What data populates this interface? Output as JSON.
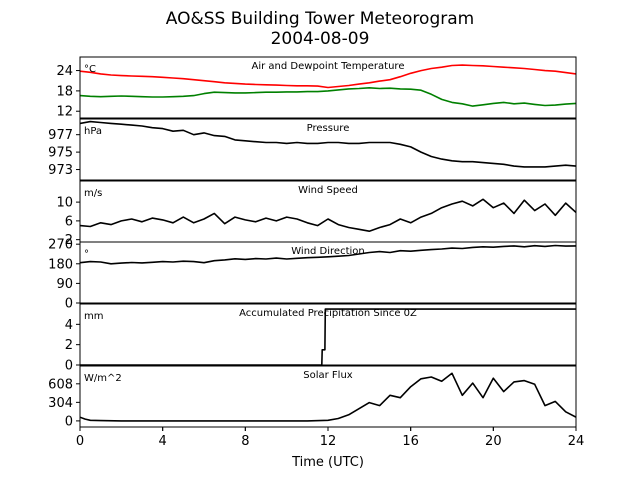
{
  "title_line1": "AO&SS Building Tower Meteorogram",
  "title_line2": "2004-08-09",
  "xlabel": "Time (UTC)",
  "chart_data": {
    "type": "line",
    "title": "AO&SS Building Tower Meteorogram 2004-08-09",
    "xlabel": "Time (UTC)",
    "xlim": [
      0,
      24
    ],
    "xticks": [
      0,
      4,
      8,
      12,
      16,
      20,
      24
    ],
    "grid": false,
    "panels": [
      {
        "name": "Air and Dewpoint Temperature",
        "unit": "°C",
        "ylim": [
          10,
          28
        ],
        "yticks": [
          12,
          18,
          24
        ],
        "series": [
          {
            "color": "#ff0000",
            "x": [
              0,
              0.5,
              1,
              1.5,
              2,
              2.5,
              3,
              3.5,
              4,
              4.5,
              5,
              5.5,
              6,
              6.5,
              7,
              7.5,
              8,
              8.5,
              9,
              9.5,
              10,
              10.5,
              11,
              11.5,
              12,
              12.5,
              13,
              13.5,
              14,
              14.5,
              15,
              15.5,
              16,
              16.5,
              17,
              17.5,
              18,
              18.5,
              19,
              19.5,
              20,
              20.5,
              21,
              21.5,
              22,
              22.5,
              23,
              23.5,
              24
            ],
            "y": [
              23.8,
              23.5,
              23.0,
              22.7,
              22.5,
              22.4,
              22.3,
              22.2,
              22.0,
              21.8,
              21.6,
              21.3,
              21.0,
              20.7,
              20.4,
              20.2,
              20.0,
              19.9,
              19.8,
              19.7,
              19.6,
              19.5,
              19.5,
              19.4,
              19.0,
              19.3,
              19.6,
              20.0,
              20.4,
              20.9,
              21.3,
              22.2,
              23.2,
              24.0,
              24.6,
              25.0,
              25.5,
              25.6,
              25.5,
              25.4,
              25.2,
              25.0,
              24.8,
              24.6,
              24.3,
              24.0,
              23.8,
              23.4,
              23.0
            ]
          },
          {
            "color": "#008000",
            "x": [
              0,
              0.5,
              1,
              1.5,
              2,
              2.5,
              3,
              3.5,
              4,
              4.5,
              5,
              5.5,
              6,
              6.5,
              7,
              7.5,
              8,
              8.5,
              9,
              9.5,
              10,
              10.5,
              11,
              11.5,
              12,
              12.5,
              13,
              13.5,
              14,
              14.5,
              15,
              15.5,
              16,
              16.5,
              17,
              17.5,
              18,
              18.5,
              19,
              19.5,
              20,
              20.5,
              21,
              21.5,
              22,
              22.5,
              23,
              23.5,
              24
            ],
            "y": [
              16.6,
              16.4,
              16.3,
              16.4,
              16.5,
              16.4,
              16.3,
              16.2,
              16.2,
              16.3,
              16.4,
              16.6,
              17.2,
              17.6,
              17.5,
              17.4,
              17.4,
              17.5,
              17.6,
              17.6,
              17.7,
              17.7,
              17.8,
              17.8,
              18.0,
              18.3,
              18.6,
              18.7,
              18.9,
              18.7,
              18.8,
              18.6,
              18.5,
              18.2,
              17.0,
              15.5,
              14.6,
              14.2,
              13.5,
              13.9,
              14.3,
              14.6,
              14.2,
              14.4,
              14.0,
              13.7,
              13.8,
              14.1,
              14.3
            ]
          }
        ]
      },
      {
        "name": "Pressure",
        "unit": "hPa",
        "ylim": [
          971.8,
          978.8
        ],
        "yticks": [
          973,
          975,
          977
        ],
        "series": [
          {
            "color": "#000000",
            "x": [
              0,
              0.5,
              1,
              1.5,
              2,
              2.5,
              3,
              3.5,
              4,
              4.5,
              5,
              5.5,
              6,
              6.5,
              7,
              7.5,
              8,
              8.5,
              9,
              9.5,
              10,
              10.5,
              11,
              11.5,
              12,
              12.5,
              13,
              13.5,
              14,
              14.5,
              15,
              15.5,
              16,
              16.5,
              17,
              17.5,
              18,
              18.5,
              19,
              19.5,
              20,
              20.5,
              21,
              21.5,
              22,
              22.5,
              23,
              23.5,
              24
            ],
            "y": [
              978.3,
              978.5,
              978.4,
              978.3,
              978.2,
              978.1,
              978.0,
              977.8,
              977.7,
              977.4,
              977.5,
              977.0,
              977.2,
              976.9,
              976.8,
              976.4,
              976.3,
              976.2,
              976.1,
              976.1,
              976.0,
              976.1,
              976.0,
              976.0,
              976.1,
              976.1,
              976.0,
              976.0,
              976.1,
              976.1,
              976.1,
              975.9,
              975.6,
              975.0,
              974.5,
              974.2,
              974.0,
              973.9,
              973.9,
              973.8,
              973.7,
              973.6,
              973.4,
              973.3,
              973.3,
              973.3,
              973.4,
              973.5,
              973.4
            ]
          }
        ]
      },
      {
        "name": "Wind Speed",
        "unit": "m/s",
        "ylim": [
          1.5,
          14.5
        ],
        "yticks": [
          2,
          6,
          10
        ],
        "series": [
          {
            "color": "#000000",
            "x": [
              0,
              0.5,
              1,
              1.5,
              2,
              2.5,
              3,
              3.5,
              4,
              4.5,
              5,
              5.5,
              6,
              6.5,
              7,
              7.5,
              8,
              8.5,
              9,
              9.5,
              10,
              10.5,
              11,
              11.5,
              12,
              12.5,
              13,
              13.5,
              14,
              14.5,
              15,
              15.5,
              16,
              16.5,
              17,
              17.5,
              18,
              18.5,
              19,
              19.5,
              20,
              20.5,
              21,
              21.5,
              22,
              22.5,
              23,
              23.5,
              24
            ],
            "y": [
              5.0,
              4.8,
              5.6,
              5.2,
              6.0,
              6.4,
              5.8,
              6.6,
              6.2,
              5.6,
              6.8,
              5.6,
              6.4,
              7.6,
              5.4,
              6.8,
              6.2,
              5.8,
              6.6,
              6.0,
              6.8,
              6.4,
              5.6,
              5.0,
              6.4,
              5.2,
              4.6,
              4.2,
              3.8,
              4.6,
              5.2,
              6.4,
              5.6,
              6.8,
              7.6,
              8.8,
              9.6,
              10.2,
              9.2,
              10.6,
              8.8,
              9.8,
              7.6,
              10.4,
              8.2,
              9.6,
              7.2,
              9.8,
              7.8
            ]
          }
        ]
      },
      {
        "name": "Wind Direction",
        "unit": "°",
        "ylim": [
          0,
          280
        ],
        "yticks": [
          0,
          90,
          180,
          270
        ],
        "series": [
          {
            "color": "#000000",
            "x": [
              0,
              0.5,
              1,
              1.5,
              2,
              2.5,
              3,
              3.5,
              4,
              4.5,
              5,
              5.5,
              6,
              6.5,
              7,
              7.5,
              8,
              8.5,
              9,
              9.5,
              10,
              10.5,
              11,
              11.5,
              12,
              12.5,
              13,
              13.5,
              14,
              14.5,
              15,
              15.5,
              16,
              16.5,
              17,
              17.5,
              18,
              18.5,
              19,
              19.5,
              20,
              20.5,
              21,
              21.5,
              22,
              22.5,
              23,
              23.5,
              24
            ],
            "y": [
              185,
              190,
              188,
              180,
              183,
              186,
              184,
              187,
              190,
              188,
              192,
              190,
              185,
              194,
              198,
              203,
              200,
              204,
              202,
              206,
              202,
              205,
              208,
              210,
              212,
              215,
              218,
              225,
              232,
              236,
              232,
              240,
              238,
              242,
              245,
              248,
              252,
              250,
              255,
              258,
              256,
              260,
              262,
              258,
              263,
              260,
              264,
              261,
              262
            ]
          }
        ]
      },
      {
        "name": "Accumulated Precipitation Since 0Z",
        "unit": "mm",
        "ylim": [
          0,
          6
        ],
        "yticks": [
          0,
          2,
          4
        ],
        "series": [
          {
            "color": "#000000",
            "x": [
              0,
              11.7,
              11.72,
              11.85,
              11.87,
              12.1,
              24
            ],
            "y": [
              0,
              0,
              1.5,
              1.5,
              5.5,
              5.5,
              5.5
            ]
          }
        ]
      },
      {
        "name": "Solar Flux",
        "unit": "W/m^2",
        "ylim": [
          -100,
          900
        ],
        "yticks": [
          0,
          304,
          608
        ],
        "series": [
          {
            "color": "#000000",
            "x": [
              0,
              0.25,
              0.5,
              1,
              2,
              4,
              6,
              8,
              10,
              11,
              12,
              12.5,
              13,
              13.5,
              14,
              14.5,
              15,
              15.5,
              16,
              16.5,
              17,
              17.5,
              18,
              18.5,
              19,
              19.5,
              20,
              20.5,
              21,
              21.5,
              22,
              22.5,
              23,
              23.5,
              24
            ],
            "y": [
              60,
              30,
              10,
              5,
              0,
              0,
              0,
              0,
              0,
              0,
              10,
              40,
              100,
              200,
              300,
              250,
              420,
              380,
              560,
              690,
              720,
              650,
              780,
              420,
              620,
              380,
              700,
              480,
              640,
              660,
              600,
              250,
              320,
              150,
              60
            ]
          }
        ]
      }
    ]
  }
}
